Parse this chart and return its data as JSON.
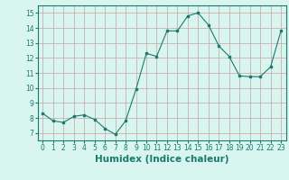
{
  "x": [
    0,
    1,
    2,
    3,
    4,
    5,
    6,
    7,
    8,
    9,
    10,
    11,
    12,
    13,
    14,
    15,
    16,
    17,
    18,
    19,
    20,
    21,
    22,
    23
  ],
  "y": [
    8.3,
    7.8,
    7.7,
    8.1,
    8.2,
    7.9,
    7.3,
    6.9,
    7.8,
    9.9,
    12.3,
    12.1,
    13.8,
    13.8,
    14.8,
    15.0,
    14.2,
    12.8,
    12.1,
    10.8,
    10.75,
    10.75,
    11.4,
    13.8
  ],
  "line_color": "#1a7a6e",
  "marker": "s",
  "marker_size": 2,
  "bg_color": "#d8f5f0",
  "grid_color": "#c8a0a0",
  "xlabel": "Humidex (Indice chaleur)",
  "xlim": [
    -0.5,
    23.5
  ],
  "ylim": [
    6.5,
    15.5
  ],
  "yticks": [
    7,
    8,
    9,
    10,
    11,
    12,
    13,
    14,
    15
  ],
  "xticks": [
    0,
    1,
    2,
    3,
    4,
    5,
    6,
    7,
    8,
    9,
    10,
    11,
    12,
    13,
    14,
    15,
    16,
    17,
    18,
    19,
    20,
    21,
    22,
    23
  ],
  "tick_fontsize": 5.5,
  "label_fontsize": 7.5
}
